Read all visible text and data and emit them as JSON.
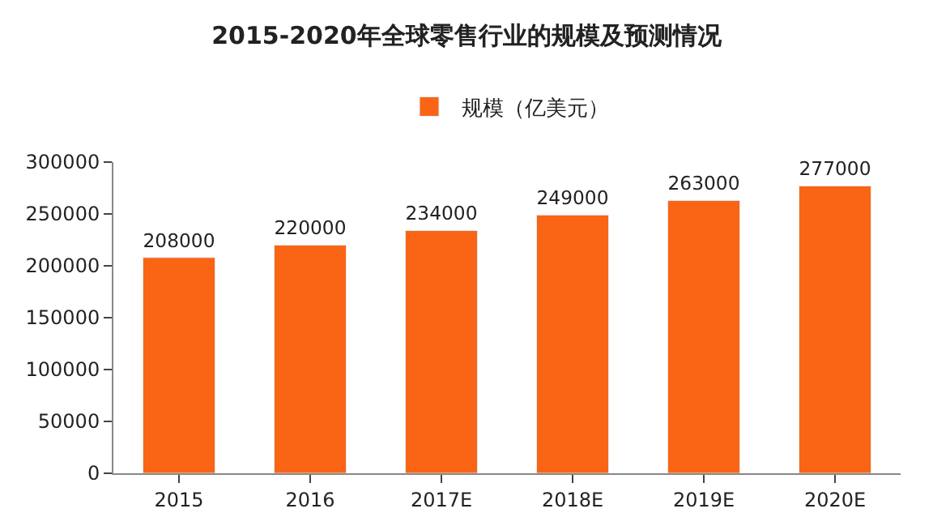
{
  "chart_data": {
    "type": "bar",
    "title": "2015-2020年全球零售行业的规模及预测情况",
    "categories": [
      "2015",
      "2016",
      "2017E",
      "2018E",
      "2019E",
      "2020E"
    ],
    "series": [
      {
        "name": "规模（亿美元）",
        "color": "#fa6415",
        "values": [
          208000,
          220000,
          234000,
          249000,
          263000,
          277000
        ]
      }
    ],
    "ylim": [
      0,
      300000
    ],
    "yticks": [
      0,
      50000,
      100000,
      150000,
      200000,
      250000,
      300000
    ],
    "data_labels": true,
    "legend": "top"
  }
}
